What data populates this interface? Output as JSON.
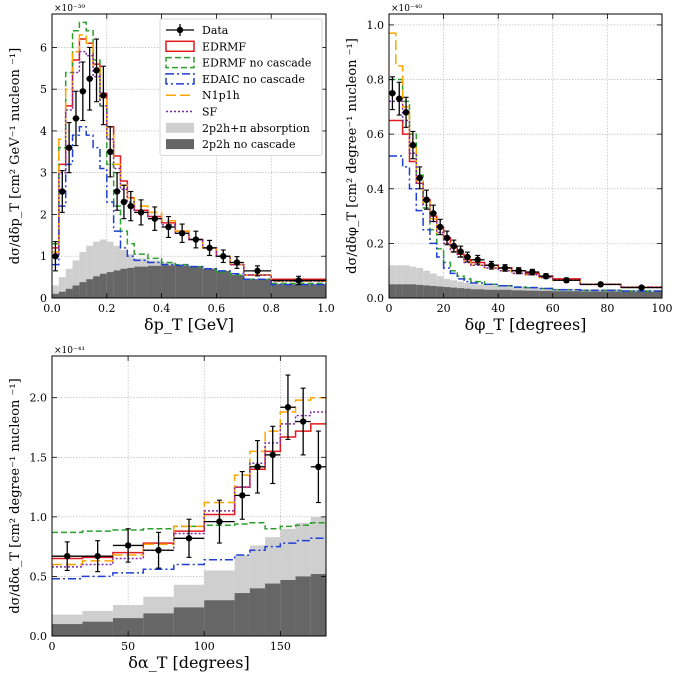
{
  "chart_data": [
    {
      "type": "histogram",
      "xlabel": "δp_T [GeV]",
      "ylabel": "dσ/dδp_T  [cm² GeV⁻¹ nucleon ⁻¹]",
      "exponent": "×10⁻³⁹",
      "xlim": [
        0,
        1.0
      ],
      "ylim": [
        0,
        6.8
      ],
      "xticks": [
        0.0,
        0.2,
        0.4,
        0.6,
        0.8,
        1.0
      ],
      "xtick_labels": [
        "0.0",
        "0.2",
        "0.4",
        "0.6",
        "0.8",
        "1.0"
      ],
      "yticks": [
        0,
        1,
        2,
        3,
        4,
        5,
        6
      ],
      "ytick_labels": [
        "0",
        "1",
        "2",
        "3",
        "4",
        "5",
        "6"
      ],
      "grid": true,
      "legend_position": "upper-right",
      "bin_edges": [
        0,
        0.025,
        0.05,
        0.075,
        0.1,
        0.125,
        0.15,
        0.175,
        0.2,
        0.225,
        0.25,
        0.275,
        0.3,
        0.35,
        0.4,
        0.45,
        0.5,
        0.55,
        0.6,
        0.65,
        0.7,
        0.8,
        1.0
      ],
      "data": {
        "x": [
          0.0125,
          0.0375,
          0.0625,
          0.0875,
          0.1125,
          0.1375,
          0.1625,
          0.1875,
          0.2125,
          0.2375,
          0.2625,
          0.2875,
          0.325,
          0.375,
          0.425,
          0.475,
          0.525,
          0.575,
          0.625,
          0.675,
          0.75,
          0.9
        ],
        "y": [
          1.0,
          2.55,
          3.6,
          4.3,
          4.95,
          5.25,
          5.45,
          4.85,
          3.5,
          2.55,
          2.3,
          2.2,
          2.05,
          1.9,
          1.7,
          1.55,
          1.4,
          1.2,
          1.0,
          0.85,
          0.65,
          0.42
        ],
        "err": [
          0.35,
          0.5,
          0.6,
          0.65,
          0.7,
          0.75,
          0.75,
          0.7,
          0.6,
          0.45,
          0.4,
          0.35,
          0.3,
          0.28,
          0.25,
          0.22,
          0.2,
          0.18,
          0.15,
          0.14,
          0.12,
          0.1
        ]
      },
      "series": [
        {
          "name": "EDRMF",
          "color": "#e41a1c",
          "dash": "",
          "values": [
            1.2,
            3.2,
            4.6,
            5.7,
            6.2,
            6.1,
            5.6,
            4.9,
            4.1,
            3.4,
            2.8,
            2.4,
            2.1,
            1.95,
            1.8,
            1.6,
            1.4,
            1.2,
            1.0,
            0.8,
            0.55,
            0.45
          ]
        },
        {
          "name": "EDRMF no cascade",
          "color": "#2ca02c",
          "dash": "6,3",
          "values": [
            1.3,
            3.6,
            5.4,
            6.4,
            6.6,
            6.4,
            5.7,
            4.6,
            3.2,
            2.2,
            1.6,
            1.3,
            1.05,
            0.95,
            0.85,
            0.8,
            0.75,
            0.7,
            0.62,
            0.55,
            0.45,
            0.35
          ]
        },
        {
          "name": "EDAIC no cascade",
          "color": "#1f3fd4",
          "dash": "8,3,2,3",
          "values": [
            0.8,
            2.2,
            3.2,
            3.9,
            4.1,
            3.9,
            3.6,
            3.1,
            2.3,
            1.6,
            1.2,
            1.0,
            0.9,
            0.85,
            0.8,
            0.78,
            0.75,
            0.7,
            0.65,
            0.58,
            0.45,
            0.32
          ]
        },
        {
          "name": "N1p1h",
          "color": "#ffa500",
          "dash": "10,4",
          "values": [
            1.1,
            3.8,
            5.0,
            5.9,
            6.3,
            6.1,
            5.5,
            4.8,
            3.9,
            3.2,
            2.7,
            2.4,
            2.2,
            2.05,
            1.85,
            1.6,
            1.4,
            1.2,
            1.0,
            0.8,
            0.55,
            0.4
          ]
        },
        {
          "name": "SF",
          "color": "#7b2ca5",
          "dash": "2,2",
          "values": [
            1.0,
            3.0,
            4.5,
            5.4,
            5.9,
            5.8,
            5.3,
            4.6,
            3.8,
            3.1,
            2.6,
            2.3,
            2.05,
            1.9,
            1.75,
            1.55,
            1.4,
            1.2,
            1.0,
            0.8,
            0.55,
            0.4
          ]
        }
      ],
      "fills": [
        {
          "name": "2p2h+π absorption",
          "color": "#cfcfcf",
          "values": [
            0.3,
            0.5,
            0.7,
            0.9,
            1.1,
            1.25,
            1.35,
            1.4,
            1.35,
            1.25,
            1.15,
            1.05,
            0.95,
            0.9,
            0.85,
            0.8,
            0.75,
            0.7,
            0.65,
            0.55,
            0.45,
            0.35
          ]
        },
        {
          "name": "2p2h no cascade",
          "color": "#666666",
          "values": [
            0.1,
            0.15,
            0.22,
            0.3,
            0.38,
            0.45,
            0.52,
            0.58,
            0.62,
            0.66,
            0.7,
            0.72,
            0.75,
            0.77,
            0.78,
            0.77,
            0.74,
            0.7,
            0.65,
            0.55,
            0.45,
            0.33
          ]
        }
      ]
    },
    {
      "type": "histogram",
      "xlabel": "δφ_T [degrees]",
      "ylabel": "dσ/dδφ_T  [cm² degree⁻¹ nucleon ⁻¹]",
      "exponent": "×10⁻⁴⁰",
      "xlim": [
        0,
        100
      ],
      "ylim": [
        0,
        1.04
      ],
      "xticks": [
        0,
        20,
        40,
        60,
        80,
        100
      ],
      "xtick_labels": [
        "0",
        "20",
        "40",
        "60",
        "80",
        "100"
      ],
      "yticks": [
        0.0,
        0.2,
        0.4,
        0.6,
        0.8,
        1.0
      ],
      "ytick_labels": [
        "0.0",
        "0.2",
        "0.4",
        "0.6",
        "0.8",
        "1.0"
      ],
      "grid": true,
      "bin_edges": [
        0,
        2.5,
        5,
        7.5,
        10,
        12.5,
        15,
        17.5,
        20,
        22.5,
        25,
        27.5,
        30,
        35,
        40,
        45,
        50,
        55,
        60,
        70,
        85,
        100
      ],
      "data": {
        "x": [
          1.25,
          3.75,
          6.25,
          8.75,
          11.25,
          13.75,
          16.25,
          18.75,
          21.25,
          23.75,
          26.25,
          28.75,
          32.5,
          37.5,
          42.5,
          47.5,
          52.5,
          57.5,
          65,
          77.5,
          92.5
        ],
        "y": [
          0.75,
          0.73,
          0.68,
          0.56,
          0.44,
          0.36,
          0.31,
          0.26,
          0.22,
          0.19,
          0.17,
          0.15,
          0.14,
          0.12,
          0.11,
          0.1,
          0.095,
          0.08,
          0.065,
          0.05,
          0.038
        ],
        "err": [
          0.06,
          0.06,
          0.055,
          0.05,
          0.04,
          0.035,
          0.03,
          0.028,
          0.025,
          0.022,
          0.02,
          0.018,
          0.016,
          0.014,
          0.012,
          0.011,
          0.01,
          0.009,
          0.008,
          0.006,
          0.005
        ]
      },
      "series": [
        {
          "name": "EDRMF",
          "color": "#e41a1c",
          "dash": "",
          "values": [
            0.65,
            0.65,
            0.6,
            0.5,
            0.42,
            0.36,
            0.3,
            0.26,
            0.22,
            0.19,
            0.16,
            0.14,
            0.13,
            0.12,
            0.11,
            0.1,
            0.09,
            0.08,
            0.07,
            0.05,
            0.04
          ]
        },
        {
          "name": "EDRMF no cascade",
          "color": "#2ca02c",
          "dash": "6,3",
          "values": [
            0.8,
            0.8,
            0.72,
            0.6,
            0.45,
            0.33,
            0.25,
            0.18,
            0.13,
            0.1,
            0.08,
            0.07,
            0.06,
            0.05,
            0.045,
            0.04,
            0.038,
            0.035,
            0.03,
            0.028,
            0.025
          ]
        },
        {
          "name": "EDAIC no cascade",
          "color": "#1f3fd4",
          "dash": "8,3,2,3",
          "values": [
            0.52,
            0.52,
            0.48,
            0.4,
            0.32,
            0.25,
            0.2,
            0.15,
            0.11,
            0.09,
            0.07,
            0.06,
            0.055,
            0.05,
            0.045,
            0.04,
            0.038,
            0.035,
            0.03,
            0.028,
            0.025
          ]
        },
        {
          "name": "N1p1h",
          "color": "#ffa500",
          "dash": "10,4",
          "values": [
            0.97,
            0.85,
            0.7,
            0.55,
            0.43,
            0.35,
            0.29,
            0.24,
            0.2,
            0.17,
            0.15,
            0.13,
            0.12,
            0.11,
            0.1,
            0.09,
            0.085,
            0.075,
            0.065,
            0.05,
            0.04
          ]
        },
        {
          "name": "SF",
          "color": "#7b2ca5",
          "dash": "2,2",
          "values": [
            0.72,
            0.72,
            0.65,
            0.53,
            0.42,
            0.34,
            0.28,
            0.24,
            0.2,
            0.17,
            0.15,
            0.13,
            0.12,
            0.11,
            0.1,
            0.09,
            0.085,
            0.075,
            0.065,
            0.05,
            0.04
          ]
        }
      ],
      "fills": [
        {
          "name": "2p2h+π absorption",
          "color": "#cfcfcf",
          "values": [
            0.12,
            0.12,
            0.12,
            0.115,
            0.11,
            0.1,
            0.09,
            0.08,
            0.07,
            0.065,
            0.06,
            0.055,
            0.05,
            0.045,
            0.042,
            0.04,
            0.038,
            0.036,
            0.034,
            0.032,
            0.03
          ]
        },
        {
          "name": "2p2h no cascade",
          "color": "#666666",
          "values": [
            0.05,
            0.05,
            0.05,
            0.05,
            0.048,
            0.046,
            0.044,
            0.042,
            0.04,
            0.038,
            0.036,
            0.034,
            0.032,
            0.03,
            0.03,
            0.028,
            0.027,
            0.026,
            0.025,
            0.024,
            0.023
          ]
        }
      ]
    },
    {
      "type": "histogram",
      "xlabel": "δα_T [degrees]",
      "ylabel": "dσ/dδα_T  [cm² degree⁻¹ nucleon ⁻¹]",
      "exponent": "×10⁻⁴¹",
      "xlim": [
        0,
        180
      ],
      "ylim": [
        0,
        2.35
      ],
      "xticks": [
        0,
        50,
        100,
        150
      ],
      "xtick_labels": [
        "0",
        "50",
        "100",
        "150"
      ],
      "yticks": [
        0.0,
        0.5,
        1.0,
        1.5,
        2.0
      ],
      "ytick_labels": [
        "0.0",
        "0.5",
        "1.0",
        "1.5",
        "2.0"
      ],
      "grid": true,
      "bin_edges": [
        0,
        20,
        40,
        60,
        80,
        100,
        120,
        130,
        140,
        150,
        160,
        170,
        180
      ],
      "data": {
        "x": [
          10,
          30,
          50,
          70,
          90,
          110,
          125,
          135,
          145,
          155,
          165,
          175
        ],
        "y": [
          0.67,
          0.67,
          0.76,
          0.72,
          0.82,
          0.96,
          1.18,
          1.42,
          1.52,
          1.92,
          1.8,
          1.42
        ],
        "err": [
          0.12,
          0.13,
          0.14,
          0.15,
          0.16,
          0.18,
          0.2,
          0.22,
          0.24,
          0.27,
          0.28,
          0.3
        ]
      },
      "series": [
        {
          "name": "EDRMF",
          "color": "#e41a1c",
          "dash": "",
          "values": [
            0.65,
            0.66,
            0.7,
            0.78,
            0.88,
            1.02,
            1.25,
            1.4,
            1.55,
            1.67,
            1.72,
            1.78
          ]
        },
        {
          "name": "EDRMF no cascade",
          "color": "#2ca02c",
          "dash": "6,3",
          "values": [
            0.87,
            0.88,
            0.89,
            0.9,
            0.92,
            0.93,
            0.94,
            0.95,
            0.9,
            0.92,
            0.93,
            0.95
          ]
        },
        {
          "name": "EDAIC no cascade",
          "color": "#1f3fd4",
          "dash": "8,3,2,3",
          "values": [
            0.48,
            0.5,
            0.53,
            0.56,
            0.6,
            0.64,
            0.68,
            0.72,
            0.75,
            0.78,
            0.8,
            0.82
          ]
        },
        {
          "name": "N1p1h",
          "color": "#ffa500",
          "dash": "10,4",
          "values": [
            0.6,
            0.63,
            0.68,
            0.77,
            0.92,
            1.12,
            1.35,
            1.55,
            1.72,
            1.88,
            1.98,
            2.0
          ]
        },
        {
          "name": "SF",
          "color": "#7b2ca5",
          "dash": "2,2",
          "values": [
            0.58,
            0.6,
            0.65,
            0.72,
            0.86,
            1.05,
            1.25,
            1.45,
            1.62,
            1.78,
            1.85,
            1.88
          ]
        }
      ],
      "fills": [
        {
          "name": "2p2h+π absorption",
          "color": "#cfcfcf",
          "values": [
            0.18,
            0.21,
            0.26,
            0.33,
            0.43,
            0.55,
            0.68,
            0.76,
            0.83,
            0.9,
            0.95,
            1.0
          ]
        },
        {
          "name": "2p2h no cascade",
          "color": "#666666",
          "values": [
            0.1,
            0.12,
            0.15,
            0.19,
            0.24,
            0.3,
            0.36,
            0.4,
            0.44,
            0.47,
            0.5,
            0.52
          ]
        }
      ]
    }
  ],
  "legend": {
    "items": [
      {
        "label": "Data",
        "kind": "data",
        "color": "#000000"
      },
      {
        "label": "EDRMF",
        "kind": "box",
        "color": "#e41a1c",
        "dash": ""
      },
      {
        "label": "EDRMF no cascade",
        "kind": "box",
        "color": "#2ca02c",
        "dash": "6,3"
      },
      {
        "label": "EDAIC no cascade",
        "kind": "box",
        "color": "#1f3fd4",
        "dash": "8,3,2,3"
      },
      {
        "label": "N1p1h",
        "kind": "line",
        "color": "#ffa500",
        "dash": "10,4"
      },
      {
        "label": "SF",
        "kind": "line",
        "color": "#7b2ca5",
        "dash": "2,2"
      },
      {
        "label": "2p2h+π absorption",
        "kind": "fill",
        "color": "#cfcfcf"
      },
      {
        "label": "2p2h no cascade",
        "kind": "fill",
        "color": "#666666"
      }
    ]
  }
}
